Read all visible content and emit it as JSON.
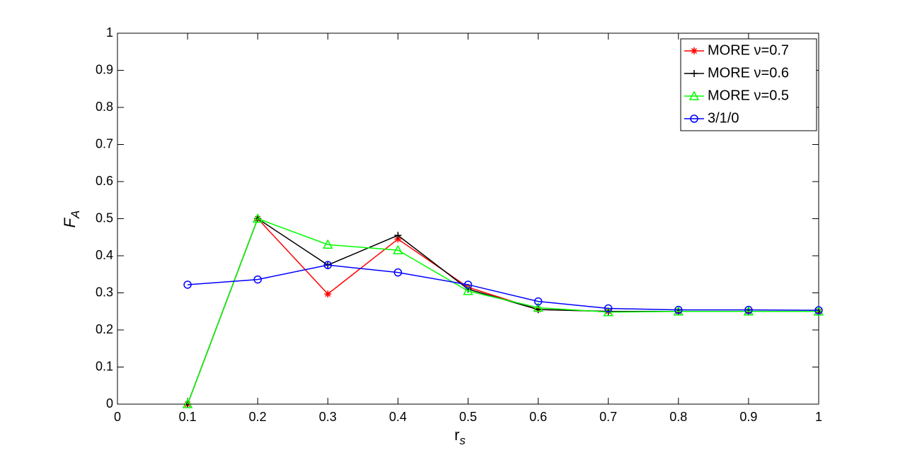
{
  "chart_data": {
    "type": "line",
    "xlabel": {
      "text": "r",
      "subscript": "s"
    },
    "ylabel": {
      "text": "F",
      "subscript": "A"
    },
    "x": [
      0.1,
      0.2,
      0.3,
      0.4,
      0.5,
      0.6,
      0.7,
      0.8,
      0.9,
      1
    ],
    "series": [
      {
        "name": "MORE ν=0.7",
        "color": "#ff0000",
        "marker": "asterisk",
        "values": [
          0,
          0.5,
          0.297,
          0.445,
          0.315,
          0.255,
          0.25,
          0.25,
          0.25,
          0.25
        ]
      },
      {
        "name": "MORE ν=0.6",
        "color": "#000000",
        "marker": "plus",
        "values": [
          0,
          0.5,
          0.375,
          0.455,
          0.31,
          0.255,
          0.25,
          0.25,
          0.25,
          0.25
        ]
      },
      {
        "name": "MORE ν=0.5",
        "color": "#00ff00",
        "marker": "triangle",
        "values": [
          0,
          0.5,
          0.43,
          0.415,
          0.305,
          0.26,
          0.248,
          0.25,
          0.25,
          0.25
        ]
      },
      {
        "name": "3/1/0",
        "color": "#0000ff",
        "marker": "circle",
        "values": [
          0.322,
          0.336,
          0.375,
          0.355,
          0.322,
          0.277,
          0.258,
          0.254,
          0.254,
          0.253
        ]
      }
    ],
    "xlim": [
      0,
      1
    ],
    "xticks": [
      0,
      0.1,
      0.2,
      0.3,
      0.4,
      0.5,
      0.6,
      0.7,
      0.8,
      0.9,
      1
    ],
    "ylim": [
      0,
      1
    ],
    "yticks": [
      0,
      0.1,
      0.2,
      0.3,
      0.4,
      0.5,
      0.6,
      0.7,
      0.8,
      0.9,
      1
    ],
    "legend": "northeast",
    "grid": false
  }
}
